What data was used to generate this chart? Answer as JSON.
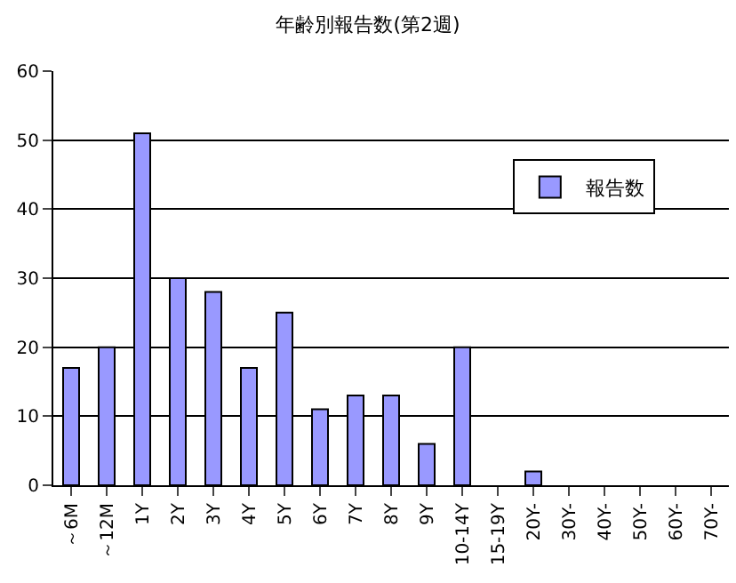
{
  "chart_data": {
    "type": "bar",
    "title": "年齢別報告数(第2週)",
    "categories": [
      "～6M",
      "～12M",
      "1Y",
      "2Y",
      "3Y",
      "4Y",
      "5Y",
      "6Y",
      "7Y",
      "8Y",
      "9Y",
      "10-14Y",
      "15-19Y",
      "20Y-",
      "30Y-",
      "40Y-",
      "50Y-",
      "60Y-",
      "70Y-"
    ],
    "series": [
      {
        "name": "報告数",
        "color": "#9999ff",
        "values": [
          17,
          20,
          51,
          30,
          28,
          17,
          25,
          11,
          13,
          13,
          6,
          20,
          0,
          2,
          0,
          0,
          0,
          0,
          0
        ]
      }
    ],
    "ylim": [
      0,
      60
    ],
    "yticks": [
      0,
      10,
      20,
      30,
      40,
      50,
      60
    ],
    "grid": "y",
    "legend": "right"
  }
}
